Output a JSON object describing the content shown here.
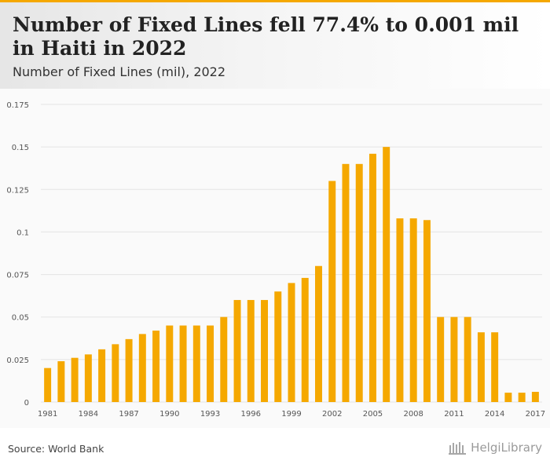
{
  "title": "Number of Fixed Lines fell 77.4% to 0.001 mil in Haiti in 2022",
  "subtitle": "Number of Fixed Lines (mil), 2022",
  "source": "Source: World Bank",
  "brand": "HelgiLibrary",
  "colors": {
    "bar": "#f5a800",
    "grid": "#e4e4e4",
    "axis_text": "#555555",
    "accent": "#f5a800"
  },
  "chart_data": {
    "type": "bar",
    "title": "",
    "xlabel": "",
    "ylabel": "",
    "ylim": [
      0,
      0.175
    ],
    "y_ticks": [
      0,
      0.025,
      0.05,
      0.075,
      0.1,
      0.125,
      0.15,
      0.175
    ],
    "y_tick_labels": [
      "0",
      "0.025",
      "0.05",
      "0.075",
      "0.1",
      "0.125",
      "0.15",
      "0.175"
    ],
    "x_tick_labels": [
      "1981",
      "1984",
      "1987",
      "1990",
      "1993",
      "1996",
      "1999",
      "2002",
      "2005",
      "2008",
      "2011",
      "2014",
      "2017"
    ],
    "grid": true,
    "categories": [
      "1981",
      "1982",
      "1983",
      "1984",
      "1985",
      "1986",
      "1987",
      "1988",
      "1989",
      "1990",
      "1991",
      "1992",
      "1993",
      "1994",
      "1995",
      "1996",
      "1997",
      "1998",
      "1999",
      "2000",
      "2001",
      "2002",
      "2003",
      "2004",
      "2005",
      "2006",
      "2007",
      "2008",
      "2009",
      "2010",
      "2011",
      "2012",
      "2013",
      "2014",
      "2015",
      "2016",
      "2017"
    ],
    "values": [
      0.02,
      0.024,
      0.026,
      0.028,
      0.031,
      0.034,
      0.037,
      0.04,
      0.042,
      0.045,
      0.045,
      0.045,
      0.045,
      0.05,
      0.06,
      0.06,
      0.06,
      0.065,
      0.07,
      0.073,
      0.08,
      0.13,
      0.14,
      0.14,
      0.146,
      0.15,
      0.108,
      0.108,
      0.107,
      0.05,
      0.05,
      0.05,
      0.041,
      0.041,
      0.0055,
      0.0055,
      0.006
    ]
  }
}
